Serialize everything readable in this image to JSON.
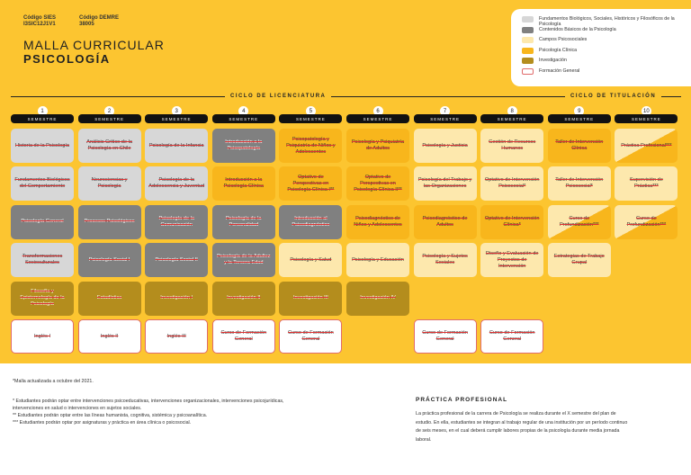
{
  "header": {
    "codes": [
      {
        "label": "Código SIES",
        "value": "I3SIC12J1V1"
      },
      {
        "label": "Código DEMRE",
        "value": "38005"
      }
    ],
    "title": "MALLA CURRICULAR",
    "subtitle": "PSICOLOGÍA"
  },
  "legend": [
    {
      "label": "Fundamentos Biológicos, Sociales, Históricos y Filosóficos de la Psicología",
      "color": "#d7d7d7"
    },
    {
      "label": "Contenidos Básicos de la Psicología",
      "color": "#808080"
    },
    {
      "label": "Campos Psicosociales",
      "color": "#fde8ad"
    },
    {
      "label": "Psicología Clínica",
      "color": "#f8b61c"
    },
    {
      "label": "Investigación",
      "color": "#b48d1d"
    },
    {
      "label": "Formación General",
      "color": "#ffffff",
      "border": "#e06b6b"
    }
  ],
  "cycles": [
    "CICLO DE LICENCIATURA",
    "CICLO DE TITULACIÓN"
  ],
  "semester_label": "SEMESTRE",
  "columns": [
    {
      "number": "1",
      "courses": [
        {
          "name": "Historia de la Psicología",
          "color": "#d7d7d7"
        },
        {
          "name": "Fundamentos Biológicos del Comportamiento",
          "color": "#d7d7d7"
        },
        {
          "name": "Psicología General",
          "color": "#808080"
        },
        {
          "name": "Transformaciones Socioculturales",
          "color": "#d7d7d7"
        },
        {
          "name": "Filosofía y Epistemología de la Psicología",
          "color": "#b48d1d"
        },
        {
          "name": "Inglés I",
          "color": "#ffffff"
        }
      ]
    },
    {
      "number": "2",
      "courses": [
        {
          "name": "Análisis Crítico de la Psicología en Chile",
          "color": "#d7d7d7"
        },
        {
          "name": "Neurociencias y Psicología",
          "color": "#d7d7d7"
        },
        {
          "name": "Procesos Psicológicos",
          "color": "#808080"
        },
        {
          "name": "Psicología Social I",
          "color": "#808080"
        },
        {
          "name": "Estadística",
          "color": "#b48d1d"
        },
        {
          "name": "Inglés II",
          "color": "#ffffff"
        }
      ]
    },
    {
      "number": "3",
      "courses": [
        {
          "name": "Psicología de la Infancia",
          "color": "#d7d7d7"
        },
        {
          "name": "Psicología de la Adolescencia y Juventud",
          "color": "#d7d7d7"
        },
        {
          "name": "Psicología de la Comunicación",
          "color": "#808080"
        },
        {
          "name": "Psicología Social II",
          "color": "#808080"
        },
        {
          "name": "Investigación I",
          "color": "#b48d1d"
        },
        {
          "name": "Inglés III",
          "color": "#ffffff"
        }
      ]
    },
    {
      "number": "4",
      "courses": [
        {
          "name": "Introducción a la Psicopatología",
          "color": "#808080"
        },
        {
          "name": "Introducción a la Psicología Clínica",
          "color": "#f8b61c"
        },
        {
          "name": "Psicología de la Personalidad",
          "color": "#808080"
        },
        {
          "name": "Psicología de la Adultez y la Tercera Edad",
          "color": "#808080"
        },
        {
          "name": "Investigación II",
          "color": "#b48d1d"
        },
        {
          "name": "Curso de Formación General",
          "color": "#ffffff"
        }
      ]
    },
    {
      "number": "5",
      "courses": [
        {
          "name": "Psicopatología y Psiquiatría de Niños y Adolescentes",
          "color": "#f8b61c"
        },
        {
          "name": "Optativo de Perspectivas en Psicología Clínica I**",
          "color": "#f8b61c"
        },
        {
          "name": "Introducción al Psicodiagnóstico",
          "color": "#808080"
        },
        {
          "name": "Psicología y Salud",
          "color": "#fde8ad"
        },
        {
          "name": "Investigación III",
          "color": "#b48d1d"
        },
        {
          "name": "Curso de Formación General",
          "color": "#ffffff"
        }
      ]
    },
    {
      "number": "6",
      "courses": [
        {
          "name": "Psicología y Psiquiatría de Adultos",
          "color": "#f8b61c"
        },
        {
          "name": "Optativo de Perspectivas en Psicología Clínica II**",
          "color": "#f8b61c"
        },
        {
          "name": "Psicodiagnóstico de Niños y Adolescentes",
          "color": "#f8b61c"
        },
        {
          "name": "Psicología y Educación",
          "color": "#fde8ad"
        },
        {
          "name": "Investigación IV",
          "color": "#b48d1d"
        },
        null
      ]
    },
    {
      "number": "7",
      "courses": [
        {
          "name": "Psicología y Justicia",
          "color": "#fde8ad"
        },
        {
          "name": "Psicología del Trabajo y las Organizaciones",
          "color": "#fde8ad"
        },
        {
          "name": "Psicodiagnóstico de Adultos",
          "color": "#f8b61c"
        },
        {
          "name": "Psicología y Sujetos Sociales",
          "color": "#fde8ad"
        },
        null,
        {
          "name": "Curso de Formación General",
          "color": "#ffffff"
        }
      ]
    },
    {
      "number": "8",
      "courses": [
        {
          "name": "Gestión de Recursos Humanos",
          "color": "#fde8ad"
        },
        {
          "name": "Optativo de Intervención Psicosocial*",
          "color": "#fde8ad"
        },
        {
          "name": "Optativo de Intervención Clínica*",
          "color": "#f8b61c"
        },
        {
          "name": "Diseño y Evaluación de Proyectos de Intervención",
          "color": "#fde8ad"
        },
        null,
        {
          "name": "Curso de Formación General",
          "color": "#ffffff"
        }
      ]
    },
    {
      "number": "9",
      "courses": [
        {
          "name": "Taller de Intervención Clínica",
          "color": "#f8b61c"
        },
        {
          "name": "Taller de Intervención Psicosocial*",
          "color": "#fde8ad"
        },
        {
          "name": "Curso de Profundización***",
          "color": [
            "#fde8ad",
            "#f8b61c"
          ]
        },
        {
          "name": "Estrategias de Trabajo Grupal",
          "color": "#fde8ad"
        }
      ]
    },
    {
      "number": "10",
      "courses": [
        {
          "name": "Práctica Profesional***",
          "color": [
            "#fde8ad",
            "#f8b61c"
          ]
        },
        {
          "name": "Supervisión de Práctica***",
          "color": "#fde8ad"
        },
        {
          "name": "Curso de Profundización***",
          "color": [
            "#fde8ad",
            "#f8b61c"
          ]
        }
      ]
    }
  ],
  "footer": {
    "update_note": "*Malla actualizada a octubre del 2021.",
    "notes": [
      "* Estudiantes podrán optar entre intervenciones psicoeducativas, intervenciones organizacionales, intervenciones psicojurídicas, intervenciones en salud o intervenciones en sujetos sociales.",
      "** Estudiantes podrán optar entre las líneas humanista, cognitiva, sistémica y psicoanalítica.",
      "*** Estudiantes podrán optar por asignaturas y práctica en área clínica o psicosocial."
    ],
    "practice_title": "PRÁCTICA PROFESIONAL",
    "practice_text": "La práctica profesional de la carrera de Psicología se realiza durante el X semestre del plan de estudio. En ella, estudiantes se integran al trabajo regular de una institución por un período continuo de seis meses, en el cual deberá cumplir labores propias de la psicología durante media jornada laboral."
  }
}
